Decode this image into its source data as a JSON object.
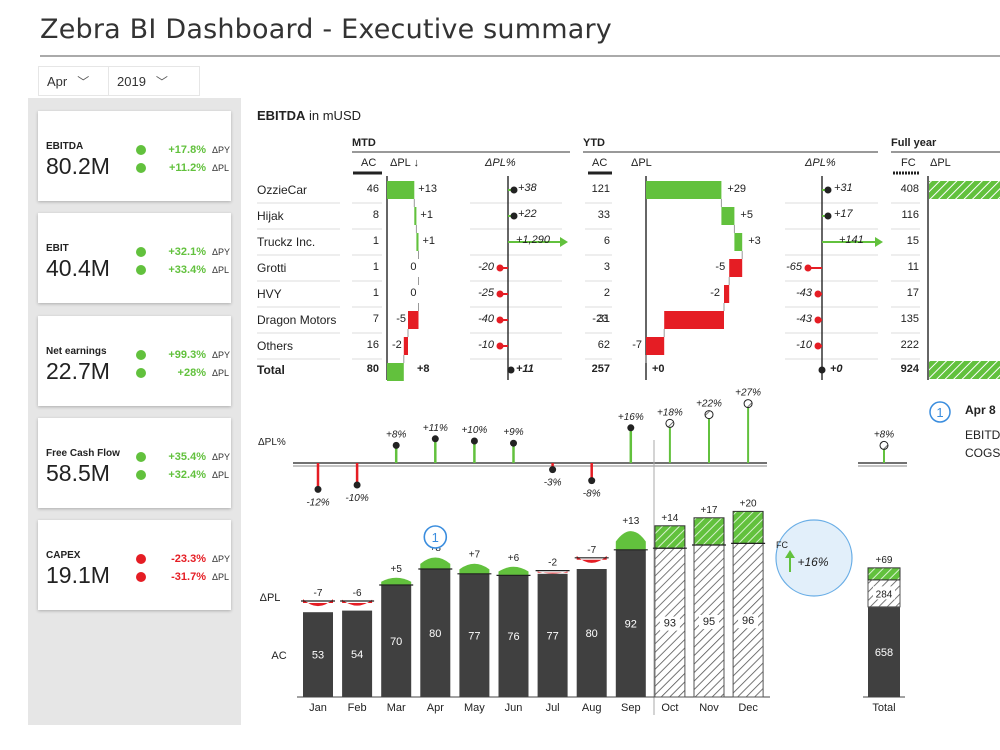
{
  "title": "Zebra BI Dashboard - Executive summary",
  "filters": {
    "month": "Apr",
    "year": "2019"
  },
  "kpis": [
    {
      "label": "EBITDA",
      "value": "80.2M",
      "py": "+17.8%",
      "pl": "+11.2%",
      "py_tag": "ΔPY",
      "pl_tag": "ΔPL",
      "py_sign": "pos",
      "pl_sign": "pos"
    },
    {
      "label": "EBIT",
      "value": "40.4M",
      "py": "+32.1%",
      "pl": "+33.4%",
      "py_tag": "ΔPY",
      "pl_tag": "ΔPL",
      "py_sign": "pos",
      "pl_sign": "pos"
    },
    {
      "label": "Net earnings",
      "value": "22.7M",
      "py": "+99.3%",
      "pl": "+28%",
      "py_tag": "ΔPY",
      "pl_tag": "ΔPL",
      "py_sign": "pos",
      "pl_sign": "pos"
    },
    {
      "label": "Free Cash Flow",
      "value": "58.5M",
      "py": "+35.4%",
      "pl": "+32.4%",
      "py_tag": "ΔPY",
      "pl_tag": "ΔPL",
      "py_sign": "pos",
      "pl_sign": "pos"
    },
    {
      "label": "CAPEX",
      "value": "19.1M",
      "py": "-23.3%",
      "pl": "-31.7%",
      "py_tag": "ΔPY",
      "pl_tag": "ΔPL",
      "py_sign": "neg",
      "pl_sign": "neg"
    }
  ],
  "table": {
    "title_bold": "EBITDA",
    "title_rest": " in mUSD",
    "groups": {
      "mtd": "MTD",
      "ytd": "YTD",
      "fy": "Full year"
    },
    "cols": {
      "ac": "AC",
      "dpl": "ΔPL ↓",
      "dplp": "ΔPL%",
      "ytd_ac": "AC",
      "ytd_dpl": "ΔPL",
      "ytd_dplp": "ΔPL%",
      "fc": "FC",
      "fy_dpl": "ΔPL"
    },
    "rows": [
      {
        "name": "OzzieCar",
        "mtd_ac": "46",
        "mtd_dpl": 13,
        "mtd_dpl_lbl": "+13",
        "mtd_pct": "+38",
        "ytd_ac": "121",
        "ytd_dpl": 29,
        "ytd_dpl_lbl": "+29",
        "ytd_pct": "+31",
        "fc": "408"
      },
      {
        "name": "Hijak",
        "mtd_ac": "8",
        "mtd_dpl": 1,
        "mtd_dpl_lbl": "+1",
        "mtd_pct": "+22",
        "ytd_ac": "33",
        "ytd_dpl": 5,
        "ytd_dpl_lbl": "+5",
        "ytd_pct": "+17",
        "fc": "116"
      },
      {
        "name": "Truckz Inc.",
        "mtd_ac": "1",
        "mtd_dpl": 1,
        "mtd_dpl_lbl": "+1",
        "mtd_pct": "+1,290",
        "ytd_ac": "6",
        "ytd_dpl": 3,
        "ytd_dpl_lbl": "+3",
        "ytd_pct": "+141",
        "fc": "15"
      },
      {
        "name": "Grotti",
        "mtd_ac": "1",
        "mtd_dpl": 0,
        "mtd_dpl_lbl": "0",
        "mtd_pct": "-20",
        "ytd_ac": "3",
        "ytd_dpl": -5,
        "ytd_dpl_lbl": "-5",
        "ytd_pct": "-65",
        "fc": "11"
      },
      {
        "name": "HVY",
        "mtd_ac": "1",
        "mtd_dpl": 0,
        "mtd_dpl_lbl": "0",
        "mtd_pct": "-25",
        "ytd_ac": "2",
        "ytd_dpl": -2,
        "ytd_dpl_lbl": "-2",
        "ytd_pct": "-43",
        "fc": "17"
      },
      {
        "name": "Dragon Motors",
        "mtd_ac": "7",
        "mtd_dpl": -5,
        "mtd_dpl_lbl": "-5",
        "mtd_pct": "-40",
        "ytd_ac": "31",
        "ytd_dpl": -23,
        "ytd_dpl_lbl": "-23",
        "ytd_pct": "-43",
        "fc": "135"
      },
      {
        "name": "Others",
        "mtd_ac": "16",
        "mtd_dpl": -2,
        "mtd_dpl_lbl": "-2",
        "mtd_pct": "-10",
        "ytd_ac": "62",
        "ytd_dpl": -7,
        "ytd_dpl_lbl": "-7",
        "ytd_pct": "-10",
        "fc": "222"
      }
    ],
    "total": {
      "name": "Total",
      "mtd_ac": "80",
      "mtd_dpl_lbl": "+8",
      "mtd_pct": "+11",
      "ytd_ac": "257",
      "ytd_dpl_lbl": "+0",
      "ytd_pct": "+0",
      "fc": "924"
    }
  },
  "note": {
    "marker": "1",
    "title": "Apr 8",
    "line1": "EBITD",
    "line2": "COGS"
  },
  "chart_data": {
    "type": "bar",
    "categories": [
      "Jan",
      "Feb",
      "Mar",
      "Apr",
      "May",
      "Jun",
      "Jul",
      "Aug",
      "Sep",
      "Oct",
      "Nov",
      "Dec"
    ],
    "forecast_from": "Oct",
    "ac": [
      53,
      54,
      70,
      80,
      77,
      76,
      77,
      80,
      92,
      93,
      95,
      96
    ],
    "dpl": [
      -7,
      -6,
      5,
      8,
      7,
      6,
      -2,
      -7,
      13,
      14,
      17,
      20
    ],
    "dpl_labels": [
      "-7",
      "-6",
      "+5",
      "+8",
      "+7",
      "+6",
      "-2",
      "-7",
      "+13",
      "+14",
      "+17",
      "+20"
    ],
    "dpl_pct": [
      -12,
      -10,
      8,
      11,
      10,
      9,
      -3,
      -8,
      16,
      18,
      22,
      27
    ],
    "dpl_pct_labels": [
      "-12%",
      "-10%",
      "+8%",
      "+11%",
      "+10%",
      "+9%",
      "-3%",
      "-8%",
      "+16%",
      "+18%",
      "+22%",
      "+27%"
    ],
    "total": {
      "label": "Total",
      "ac": 658,
      "fc": 284,
      "dpl": "+69",
      "dpl_pct": "+8%"
    },
    "row_labels": {
      "pct": "ΔPL%",
      "dpl": "ΔPL",
      "ac": "AC"
    },
    "callout": {
      "marker": "1",
      "fc_label": "FC",
      "text": "+16%"
    },
    "colors": {
      "ac": "#404040",
      "pos": "#62c13d",
      "neg": "#e51d24",
      "fc_hatch": "#999999"
    }
  }
}
